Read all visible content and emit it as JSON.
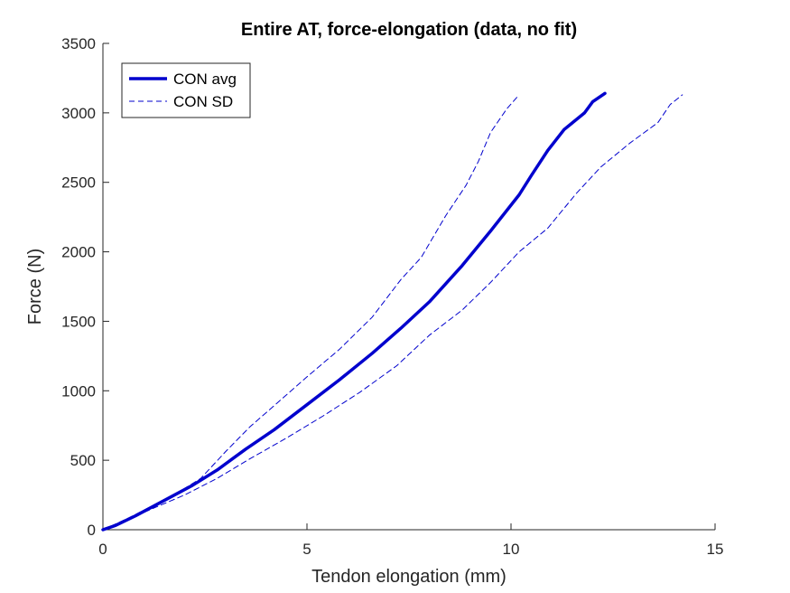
{
  "chart_data": {
    "type": "line",
    "title": "Entire AT, force-elongation (data, no fit)",
    "xlabel": "Tendon elongation (mm)",
    "ylabel": "Force (N)",
    "xlim": [
      0,
      15
    ],
    "ylim": [
      0,
      3500
    ],
    "xticks": [
      0,
      5,
      10,
      15
    ],
    "yticks": [
      0,
      500,
      1000,
      1500,
      2000,
      2500,
      3000,
      3500
    ],
    "grid": false,
    "legend_position": "top-left",
    "series": [
      {
        "name": "CON avg",
        "style": "solid",
        "color": "#0000cd",
        "points": [
          [
            0,
            0
          ],
          [
            0.3,
            30
          ],
          [
            0.8,
            100
          ],
          [
            1.5,
            210
          ],
          [
            2.2,
            320
          ],
          [
            2.8,
            430
          ],
          [
            3.5,
            580
          ],
          [
            4.2,
            720
          ],
          [
            5.0,
            900
          ],
          [
            5.8,
            1080
          ],
          [
            6.6,
            1270
          ],
          [
            7.3,
            1450
          ],
          [
            8.0,
            1640
          ],
          [
            8.8,
            1900
          ],
          [
            9.5,
            2150
          ],
          [
            10.2,
            2410
          ],
          [
            10.5,
            2550
          ],
          [
            10.9,
            2730
          ],
          [
            11.3,
            2880
          ],
          [
            11.8,
            3000
          ],
          [
            12.0,
            3080
          ],
          [
            12.3,
            3140
          ]
        ]
      },
      {
        "name": "CON SD",
        "style": "dashed",
        "color": "#0000cd",
        "points": [
          [
            0,
            0
          ],
          [
            0.6,
            80
          ],
          [
            1.2,
            170
          ],
          [
            1.8,
            260
          ],
          [
            2.4,
            370
          ],
          [
            3.0,
            560
          ],
          [
            3.6,
            740
          ],
          [
            4.3,
            920
          ],
          [
            5.0,
            1100
          ],
          [
            5.8,
            1300
          ],
          [
            6.6,
            1530
          ],
          [
            7.3,
            1800
          ],
          [
            7.8,
            1960
          ],
          [
            8.4,
            2260
          ],
          [
            8.9,
            2480
          ],
          [
            9.2,
            2650
          ],
          [
            9.5,
            2860
          ],
          [
            9.9,
            3030
          ],
          [
            10.2,
            3130
          ]
        ]
      },
      {
        "name": "",
        "style": "dashed",
        "color": "#0000cd",
        "points": [
          [
            0,
            0
          ],
          [
            0.6,
            70
          ],
          [
            1.2,
            150
          ],
          [
            2.0,
            250
          ],
          [
            2.8,
            370
          ],
          [
            3.6,
            510
          ],
          [
            4.5,
            660
          ],
          [
            5.4,
            820
          ],
          [
            6.3,
            990
          ],
          [
            7.2,
            1180
          ],
          [
            8.0,
            1400
          ],
          [
            8.8,
            1580
          ],
          [
            9.5,
            1780
          ],
          [
            10.2,
            2000
          ],
          [
            10.9,
            2170
          ],
          [
            11.6,
            2420
          ],
          [
            12.2,
            2610
          ],
          [
            12.9,
            2780
          ],
          [
            13.6,
            2930
          ],
          [
            13.9,
            3060
          ],
          [
            14.2,
            3130
          ]
        ]
      }
    ]
  }
}
